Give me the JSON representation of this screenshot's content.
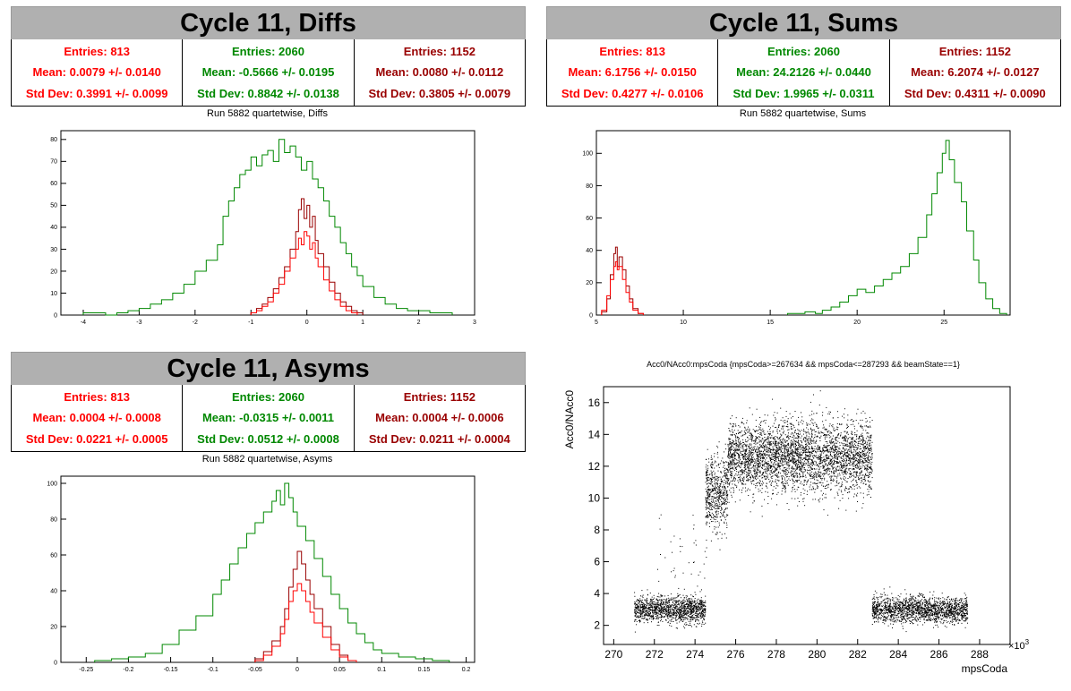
{
  "colors": {
    "red": "#ff0000",
    "green": "#008800",
    "darkred": "#990000",
    "black": "#000000"
  },
  "diffs": {
    "title": "Cycle 11, Diffs",
    "subtitle": "Run 5882 quartetwise, Diffs",
    "stats": [
      {
        "entries": "Entries: 813",
        "mean": "Mean: 0.0079 +/- 0.0140",
        "std": "Std Dev: 0.3991 +/- 0.0099",
        "color": "#ff0000"
      },
      {
        "entries": "Entries: 2060",
        "mean": "Mean: -0.5666 +/- 0.0195",
        "std": "Std Dev: 0.8842 +/- 0.0138",
        "color": "#008800"
      },
      {
        "entries": "Entries: 1152",
        "mean": "Mean: 0.0080 +/- 0.0112",
        "std": "Std Dev: 0.3805 +/- 0.0079",
        "color": "#990000"
      }
    ]
  },
  "sums": {
    "title": "Cycle 11, Sums",
    "subtitle": "Run 5882 quartetwise, Sums",
    "stats": [
      {
        "entries": "Entries: 813",
        "mean": "Mean: 6.1756 +/- 0.0150",
        "std": "Std Dev: 0.4277 +/- 0.0106",
        "color": "#ff0000"
      },
      {
        "entries": "Entries: 2060",
        "mean": "Mean: 24.2126 +/- 0.0440",
        "std": "Std Dev: 1.9965 +/- 0.0311",
        "color": "#008800"
      },
      {
        "entries": "Entries: 1152",
        "mean": "Mean: 6.2074 +/- 0.0127",
        "std": "Std Dev: 0.4311 +/- 0.0090",
        "color": "#990000"
      }
    ]
  },
  "asyms": {
    "title": "Cycle 11, Asyms",
    "subtitle": "Run 5882 quartetwise, Asyms",
    "stats": [
      {
        "entries": "Entries: 813",
        "mean": "Mean: 0.0004 +/- 0.0008",
        "std": "Std Dev: 0.0221 +/- 0.0005",
        "color": "#ff0000"
      },
      {
        "entries": "Entries: 2060",
        "mean": "Mean: -0.0315 +/- 0.0011",
        "std": "Std Dev: 0.0512 +/- 0.0008",
        "color": "#008800"
      },
      {
        "entries": "Entries: 1152",
        "mean": "Mean: 0.0004 +/- 0.0006",
        "std": "Std Dev: 0.0211 +/- 0.0004",
        "color": "#990000"
      }
    ]
  },
  "scatter": {
    "title": "Acc0/NAcc0:mpsCoda {mpsCoda>=267634 && mpsCoda<=287293 && beamState==1}",
    "xlabel": "mpsCoda",
    "ylabel": "Acc0/NAcc0",
    "exponent": "×10",
    "exponent_sup": "3"
  },
  "chart_data": [
    {
      "type": "histogram",
      "name": "diffs",
      "xlim": [
        -4.4,
        3
      ],
      "ylim": [
        0,
        84
      ],
      "xticks": [
        "-4",
        "-3",
        "-2",
        "-1",
        "0",
        "1",
        "2",
        "3"
      ],
      "yticks": [
        "0",
        "10",
        "20",
        "30",
        "40",
        "50",
        "60",
        "70",
        "80"
      ],
      "series": [
        {
          "color": "#008800",
          "bins": [
            [
              -4.0,
              1
            ],
            [
              -3.8,
              1
            ],
            [
              -3.6,
              0
            ],
            [
              -3.4,
              1
            ],
            [
              -3.2,
              2
            ],
            [
              -3.0,
              3
            ],
            [
              -2.8,
              5
            ],
            [
              -2.6,
              7
            ],
            [
              -2.4,
              10
            ],
            [
              -2.2,
              14
            ],
            [
              -2.0,
              20
            ],
            [
              -1.8,
              25
            ],
            [
              -1.6,
              32
            ],
            [
              -1.5,
              45
            ],
            [
              -1.4,
              52
            ],
            [
              -1.3,
              58
            ],
            [
              -1.2,
              64
            ],
            [
              -1.1,
              66
            ],
            [
              -1.0,
              72
            ],
            [
              -0.9,
              68
            ],
            [
              -0.8,
              73
            ],
            [
              -0.7,
              75
            ],
            [
              -0.6,
              70
            ],
            [
              -0.5,
              80
            ],
            [
              -0.4,
              74
            ],
            [
              -0.3,
              77
            ],
            [
              -0.2,
              72
            ],
            [
              -0.1,
              66
            ],
            [
              0.0,
              70
            ],
            [
              0.1,
              62
            ],
            [
              0.2,
              58
            ],
            [
              0.3,
              52
            ],
            [
              0.4,
              45
            ],
            [
              0.5,
              40
            ],
            [
              0.6,
              33
            ],
            [
              0.7,
              28
            ],
            [
              0.8,
              22
            ],
            [
              0.9,
              18
            ],
            [
              1.0,
              13
            ],
            [
              1.2,
              8
            ],
            [
              1.4,
              5
            ],
            [
              1.6,
              3
            ],
            [
              1.8,
              2
            ],
            [
              2.0,
              2
            ],
            [
              2.2,
              1
            ],
            [
              2.4,
              1
            ]
          ]
        },
        {
          "color": "#990000",
          "bins": [
            [
              -1.0,
              1
            ],
            [
              -0.9,
              3
            ],
            [
              -0.8,
              5
            ],
            [
              -0.7,
              8
            ],
            [
              -0.6,
              12
            ],
            [
              -0.5,
              17
            ],
            [
              -0.4,
              22
            ],
            [
              -0.3,
              30
            ],
            [
              -0.2,
              38
            ],
            [
              -0.15,
              48
            ],
            [
              -0.1,
              53
            ],
            [
              -0.05,
              44
            ],
            [
              0.0,
              50
            ],
            [
              0.05,
              40
            ],
            [
              0.1,
              45
            ],
            [
              0.15,
              34
            ],
            [
              0.2,
              28
            ],
            [
              0.3,
              22
            ],
            [
              0.4,
              15
            ],
            [
              0.5,
              10
            ],
            [
              0.6,
              6
            ],
            [
              0.7,
              4
            ],
            [
              0.8,
              2
            ],
            [
              0.9,
              1
            ]
          ]
        },
        {
          "color": "#ff0000",
          "bins": [
            [
              -1.0,
              1
            ],
            [
              -0.9,
              2
            ],
            [
              -0.8,
              4
            ],
            [
              -0.7,
              6
            ],
            [
              -0.6,
              10
            ],
            [
              -0.5,
              14
            ],
            [
              -0.4,
              20
            ],
            [
              -0.3,
              26
            ],
            [
              -0.2,
              30
            ],
            [
              -0.15,
              35
            ],
            [
              -0.1,
              32
            ],
            [
              -0.05,
              38
            ],
            [
              0.0,
              36
            ],
            [
              0.05,
              30
            ],
            [
              0.1,
              33
            ],
            [
              0.15,
              26
            ],
            [
              0.2,
              22
            ],
            [
              0.3,
              16
            ],
            [
              0.4,
              11
            ],
            [
              0.5,
              7
            ],
            [
              0.6,
              4
            ],
            [
              0.7,
              2
            ],
            [
              0.8,
              1
            ]
          ]
        }
      ]
    },
    {
      "type": "histogram",
      "name": "sums",
      "xlim": [
        5,
        28.8
      ],
      "ylim": [
        0,
        114
      ],
      "xticks": [
        "5",
        "10",
        "15",
        "20",
        "25"
      ],
      "yticks": [
        "0",
        "20",
        "40",
        "60",
        "80",
        "100"
      ],
      "series": [
        {
          "color": "#008800",
          "bins": [
            [
              16.0,
              1
            ],
            [
              17.0,
              2
            ],
            [
              17.6,
              1
            ],
            [
              18.0,
              3
            ],
            [
              18.5,
              5
            ],
            [
              19.0,
              8
            ],
            [
              19.5,
              12
            ],
            [
              20.0,
              16
            ],
            [
              20.5,
              14
            ],
            [
              21.0,
              18
            ],
            [
              21.5,
              22
            ],
            [
              22.0,
              26
            ],
            [
              22.5,
              30
            ],
            [
              23.0,
              38
            ],
            [
              23.5,
              48
            ],
            [
              24.0,
              62
            ],
            [
              24.3,
              75
            ],
            [
              24.6,
              88
            ],
            [
              24.9,
              100
            ],
            [
              25.1,
              108
            ],
            [
              25.3,
              96
            ],
            [
              25.6,
              82
            ],
            [
              26.0,
              70
            ],
            [
              26.3,
              52
            ],
            [
              26.7,
              34
            ],
            [
              27.0,
              20
            ],
            [
              27.4,
              10
            ],
            [
              27.8,
              4
            ],
            [
              28.2,
              1
            ]
          ]
        },
        {
          "color": "#990000",
          "bins": [
            [
              5.3,
              2
            ],
            [
              5.6,
              10
            ],
            [
              5.8,
              25
            ],
            [
              6.0,
              38
            ],
            [
              6.1,
              42
            ],
            [
              6.2,
              30
            ],
            [
              6.3,
              36
            ],
            [
              6.5,
              28
            ],
            [
              6.7,
              18
            ],
            [
              6.9,
              10
            ],
            [
              7.1,
              4
            ],
            [
              7.4,
              1
            ]
          ]
        },
        {
          "color": "#ff0000",
          "bins": [
            [
              5.3,
              3
            ],
            [
              5.6,
              12
            ],
            [
              5.8,
              22
            ],
            [
              6.0,
              30
            ],
            [
              6.1,
              33
            ],
            [
              6.2,
              28
            ],
            [
              6.3,
              30
            ],
            [
              6.5,
              22
            ],
            [
              6.7,
              14
            ],
            [
              6.9,
              8
            ],
            [
              7.1,
              3
            ],
            [
              7.4,
              1
            ]
          ]
        }
      ]
    },
    {
      "type": "histogram",
      "name": "asyms",
      "xlim": [
        -0.28,
        0.21
      ],
      "ylim": [
        0,
        104
      ],
      "xticks": [
        "-0.25",
        "-0.2",
        "-0.15",
        "-0.1",
        "-0.05",
        "0",
        "0.05",
        "0.1",
        "0.15",
        "0.2"
      ],
      "yticks": [
        "0",
        "20",
        "40",
        "60",
        "80",
        "100"
      ],
      "series": [
        {
          "color": "#008800",
          "bins": [
            [
              -0.24,
              1
            ],
            [
              -0.22,
              2
            ],
            [
              -0.2,
              3
            ],
            [
              -0.18,
              5
            ],
            [
              -0.16,
              10
            ],
            [
              -0.14,
              18
            ],
            [
              -0.12,
              26
            ],
            [
              -0.1,
              38
            ],
            [
              -0.09,
              46
            ],
            [
              -0.08,
              55
            ],
            [
              -0.07,
              64
            ],
            [
              -0.06,
              72
            ],
            [
              -0.05,
              78
            ],
            [
              -0.04,
              84
            ],
            [
              -0.03,
              90
            ],
            [
              -0.025,
              96
            ],
            [
              -0.02,
              88
            ],
            [
              -0.015,
              100
            ],
            [
              -0.01,
              92
            ],
            [
              -0.005,
              84
            ],
            [
              0.0,
              76
            ],
            [
              0.01,
              68
            ],
            [
              0.02,
              58
            ],
            [
              0.03,
              48
            ],
            [
              0.04,
              38
            ],
            [
              0.05,
              30
            ],
            [
              0.06,
              22
            ],
            [
              0.07,
              16
            ],
            [
              0.08,
              11
            ],
            [
              0.09,
              7
            ],
            [
              0.1,
              5
            ],
            [
              0.12,
              3
            ],
            [
              0.14,
              2
            ],
            [
              0.16,
              1
            ]
          ]
        },
        {
          "color": "#990000",
          "bins": [
            [
              -0.05,
              2
            ],
            [
              -0.04,
              6
            ],
            [
              -0.03,
              12
            ],
            [
              -0.02,
              20
            ],
            [
              -0.015,
              30
            ],
            [
              -0.01,
              42
            ],
            [
              -0.005,
              52
            ],
            [
              0.0,
              62
            ],
            [
              0.005,
              55
            ],
            [
              0.01,
              46
            ],
            [
              0.015,
              38
            ],
            [
              0.02,
              30
            ],
            [
              0.03,
              20
            ],
            [
              0.04,
              10
            ],
            [
              0.05,
              4
            ],
            [
              0.06,
              1
            ]
          ]
        },
        {
          "color": "#ff0000",
          "bins": [
            [
              -0.05,
              1
            ],
            [
              -0.04,
              4
            ],
            [
              -0.03,
              9
            ],
            [
              -0.02,
              16
            ],
            [
              -0.015,
              24
            ],
            [
              -0.01,
              34
            ],
            [
              -0.005,
              40
            ],
            [
              0.0,
              44
            ],
            [
              0.005,
              40
            ],
            [
              0.01,
              34
            ],
            [
              0.015,
              28
            ],
            [
              0.02,
              22
            ],
            [
              0.03,
              14
            ],
            [
              0.04,
              7
            ],
            [
              0.05,
              3
            ],
            [
              0.06,
              1
            ]
          ]
        }
      ]
    },
    {
      "type": "scatter",
      "name": "acc0-vs-mpscoda",
      "xlim": [
        269.5,
        289.5
      ],
      "ylim": [
        0.8,
        17
      ],
      "xticks": [
        "270",
        "272",
        "274",
        "276",
        "278",
        "280",
        "282",
        "284",
        "286",
        "288"
      ],
      "yticks": [
        "2",
        "4",
        "6",
        "8",
        "10",
        "12",
        "14",
        "16"
      ],
      "color": "#000000",
      "clusters": [
        {
          "x": [
            271.0,
            274.5
          ],
          "y_center": 3.0,
          "y_spread": 0.4,
          "density": 1400
        },
        {
          "x": [
            274.5,
            275.6
          ],
          "y_center": 10.3,
          "y_spread": 1.2,
          "density": 600
        },
        {
          "x": [
            275.6,
            282.7
          ],
          "y_center": 12.6,
          "y_spread": 1.1,
          "density": 3800
        },
        {
          "x": [
            282.7,
            287.4
          ],
          "y_center": 3.0,
          "y_spread": 0.4,
          "density": 1800
        }
      ]
    }
  ]
}
